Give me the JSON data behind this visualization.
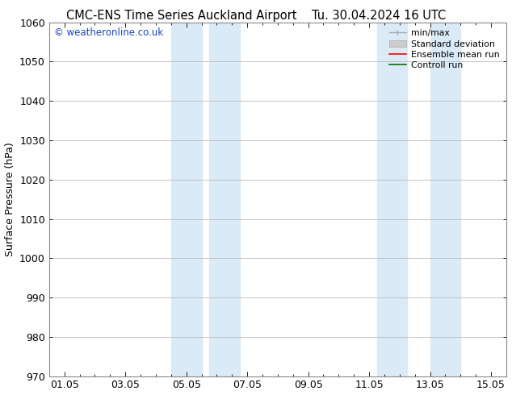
{
  "title_left": "CMC-ENS Time Series Auckland Airport",
  "title_right": "Tu. 30.04.2024 16 UTC",
  "ylabel": "Surface Pressure (hPa)",
  "ylim": [
    970,
    1060
  ],
  "yticks": [
    970,
    980,
    990,
    1000,
    1010,
    1020,
    1030,
    1040,
    1050,
    1060
  ],
  "xtick_labels": [
    "01.05",
    "03.05",
    "05.05",
    "07.05",
    "09.05",
    "11.05",
    "13.05",
    "15.05"
  ],
  "xtick_positions": [
    0,
    2,
    4,
    6,
    8,
    10,
    12,
    14
  ],
  "xlim": [
    -0.5,
    14.5
  ],
  "shaded_bands": [
    {
      "x_start": 3.75,
      "x_end": 4.75
    },
    {
      "x_start": 5.25,
      "x_end": 5.75
    },
    {
      "x_start": 10.25,
      "x_end": 11.25
    },
    {
      "x_start": 12.25,
      "x_end": 12.75
    }
  ],
  "shaded_color": "#daeaf7",
  "watermark_text": "© weatheronline.co.uk",
  "watermark_color": "#1a44bb",
  "legend_entries": [
    {
      "label": "min/max",
      "color": "#aaaaaa",
      "style": "line_with_caps"
    },
    {
      "label": "Standard deviation",
      "color": "#cccccc",
      "style": "filled"
    },
    {
      "label": "Ensemble mean run",
      "color": "#ff0000",
      "style": "line"
    },
    {
      "label": "Controll run",
      "color": "#008800",
      "style": "line"
    }
  ],
  "bg_color": "#ffffff",
  "grid_color": "#bbbbbb",
  "title_fontsize": 10.5,
  "axis_fontsize": 9,
  "tick_fontsize": 9
}
